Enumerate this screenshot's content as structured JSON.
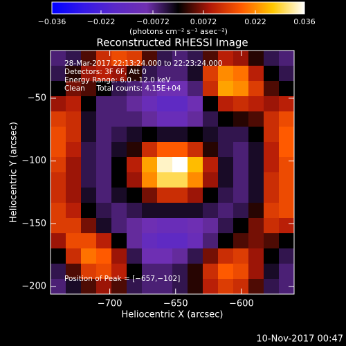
{
  "chart_data": {
    "type": "heatmap",
    "title": "Reconstructed RHESSI Image",
    "x_label": "Heliocentric X (arcsec)",
    "y_label": "Heliocentric Y (arcsec)",
    "annotations": [
      "28-Mar-2017 22:13:24.000 to 22:23:24.000",
      "Detectors: 3F 6F, Att 0",
      "Energy Range: 6.0 - 12.0 keV",
      "Clean     Total counts: 4.15E+04"
    ],
    "peak_label": "Position of Peak = [−657,−102]",
    "footer": "10-Nov-2017 00:47",
    "xlim": [
      -745,
      -560
    ],
    "ylim": [
      -206,
      -12
    ],
    "xticks": [
      {
        "value": -700,
        "label": "−700"
      },
      {
        "value": -650,
        "label": "−650"
      },
      {
        "value": -600,
        "label": "−600"
      }
    ],
    "yticks": [
      {
        "value": -50,
        "label": "−50"
      },
      {
        "value": -100,
        "label": "−100"
      },
      {
        "value": -150,
        "label": "−150"
      },
      {
        "value": -200,
        "label": "−200"
      }
    ],
    "colors": [
      "#0000ff",
      "#3418e8",
      "#5a28c8",
      "#7030b0",
      "#000000",
      "#b01808",
      "#ff5a00",
      "#ffc800",
      "#ffffff"
    ],
    "colorbar": {
      "label": "(photons cm⁻² s⁻¹ asec⁻²)",
      "lim": [
        -0.036,
        0.036
      ],
      "ticks": [
        {
          "value": -0.036,
          "label": "−0.036"
        },
        {
          "value": -0.022,
          "label": "−0.022"
        },
        {
          "value": -0.0072,
          "label": "−0.0072"
        },
        0.0072,
        0.022,
        0.036
      ]
    },
    "z": [
      [
        -0.006,
        -0.004,
        0.004,
        0.012,
        0.016,
        0.014,
        0.004,
        -0.004,
        -0.006,
        -0.004,
        0.004,
        0.01,
        0.008,
        0.002,
        -0.004,
        -0.006
      ],
      [
        -0.004,
        0.002,
        0.008,
        0.01,
        0.008,
        0.002,
        -0.004,
        -0.006,
        -0.006,
        -0.002,
        0.014,
        0.022,
        0.02,
        0.01,
        0.0,
        -0.004
      ],
      [
        0.0,
        0.006,
        0.004,
        0.0,
        -0.004,
        -0.006,
        -0.008,
        -0.01,
        -0.01,
        -0.006,
        0.012,
        0.024,
        0.022,
        0.014,
        0.004,
        0.0
      ],
      [
        0.008,
        0.01,
        0.0,
        -0.006,
        -0.006,
        -0.008,
        -0.012,
        -0.016,
        -0.016,
        -0.01,
        0.0,
        0.01,
        0.012,
        0.01,
        0.008,
        0.01
      ],
      [
        0.014,
        0.012,
        -0.002,
        -0.006,
        -0.006,
        -0.006,
        -0.008,
        -0.012,
        -0.012,
        -0.008,
        -0.004,
        0.0,
        0.002,
        0.004,
        0.012,
        0.016
      ],
      [
        0.016,
        0.012,
        -0.002,
        -0.006,
        -0.004,
        -0.002,
        0.0,
        -0.002,
        -0.002,
        0.0,
        -0.002,
        -0.004,
        -0.004,
        0.0,
        0.012,
        0.018
      ],
      [
        0.016,
        0.01,
        -0.004,
        -0.006,
        -0.002,
        0.002,
        0.012,
        0.018,
        0.018,
        0.012,
        0.002,
        -0.004,
        -0.006,
        -0.002,
        0.01,
        0.018
      ],
      [
        0.014,
        0.008,
        -0.004,
        -0.006,
        0.0,
        0.01,
        0.024,
        0.034,
        0.036,
        0.026,
        0.01,
        -0.002,
        -0.006,
        -0.002,
        0.01,
        0.016
      ],
      [
        0.012,
        0.008,
        -0.004,
        -0.006,
        0.0,
        0.008,
        0.022,
        0.03,
        0.03,
        0.022,
        0.008,
        -0.002,
        -0.006,
        -0.002,
        0.012,
        0.016
      ],
      [
        0.012,
        0.008,
        -0.002,
        -0.006,
        -0.002,
        0.0,
        0.006,
        0.012,
        0.012,
        0.008,
        0.0,
        -0.004,
        -0.006,
        -0.002,
        0.012,
        0.016
      ],
      [
        0.014,
        0.01,
        0.0,
        -0.004,
        -0.006,
        -0.004,
        -0.002,
        -0.002,
        -0.002,
        -0.002,
        -0.004,
        -0.006,
        -0.004,
        0.002,
        0.014,
        0.016
      ],
      [
        0.014,
        0.014,
        0.006,
        -0.002,
        -0.006,
        -0.008,
        -0.01,
        -0.012,
        -0.012,
        -0.01,
        -0.008,
        -0.004,
        0.0,
        0.006,
        0.012,
        0.01
      ],
      [
        0.008,
        0.016,
        0.016,
        0.01,
        0.0,
        -0.008,
        -0.014,
        -0.016,
        -0.016,
        -0.012,
        -0.006,
        0.0,
        0.004,
        0.006,
        0.004,
        0.0
      ],
      [
        0.0,
        0.012,
        0.02,
        0.018,
        0.008,
        -0.004,
        -0.01,
        -0.01,
        -0.008,
        -0.004,
        0.006,
        0.012,
        0.014,
        0.008,
        0.0,
        -0.004
      ],
      [
        -0.004,
        0.004,
        0.014,
        0.016,
        0.01,
        0.0,
        -0.006,
        -0.006,
        -0.004,
        0.002,
        0.012,
        0.018,
        0.016,
        0.008,
        -0.002,
        -0.006
      ],
      [
        -0.006,
        -0.002,
        0.004,
        0.008,
        0.004,
        -0.004,
        -0.006,
        -0.006,
        -0.004,
        0.002,
        0.01,
        0.014,
        0.012,
        0.004,
        -0.004,
        -0.006
      ]
    ]
  }
}
